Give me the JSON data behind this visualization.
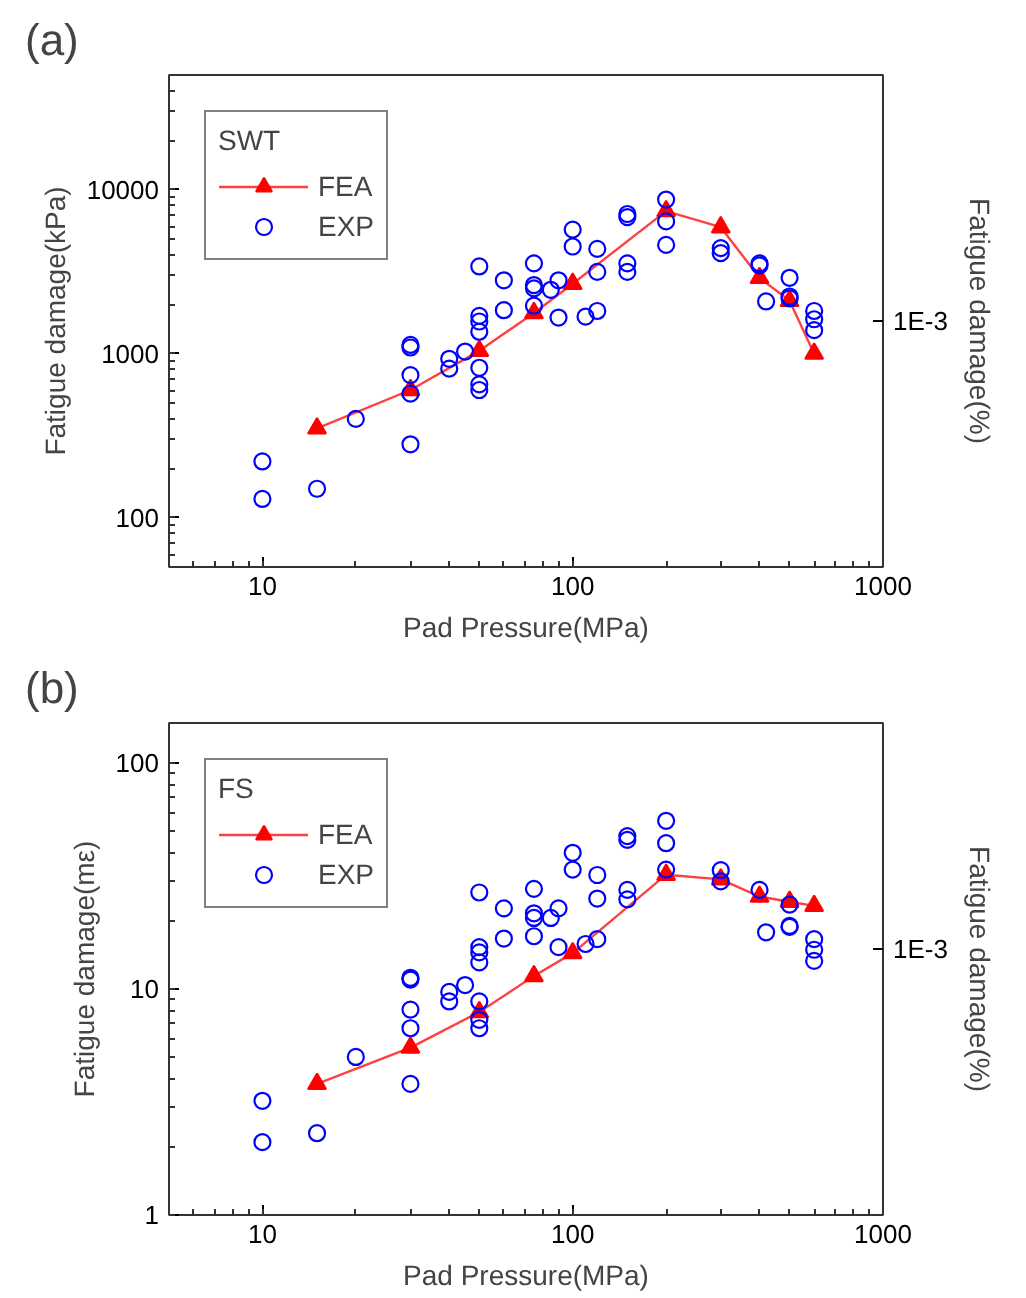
{
  "chart_data": [
    {
      "type": "scatter",
      "title": "(a)",
      "xlabel": "Pad Pressure(MPa)",
      "ylabel": "Fatigue damage(kPa)",
      "y2label": "Fatigue damage(%)",
      "legend_title": "SWT",
      "legend": "top left",
      "grid": false,
      "log": "xy",
      "xlim": [
        5,
        1000
      ],
      "ylim": [
        50,
        50000
      ],
      "xticks": [
        10,
        100,
        1000
      ],
      "yticks": [
        100,
        1000,
        10000
      ],
      "annotations": [
        "1E-3"
      ],
      "series": [
        {
          "name": "FEA",
          "type": "line",
          "marker": "triangle",
          "line_style": "solid",
          "color": "#ff0000",
          "x": [
            15,
            30,
            50,
            75,
            100,
            200,
            300,
            400,
            500,
            600
          ],
          "values": [
            350,
            600,
            1040,
            1770,
            2670,
            7400,
            5900,
            2900,
            2100,
            1000
          ]
        },
        {
          "name": "EXP",
          "marker": "circle",
          "color": "#0000ff",
          "x": [
            10,
            10,
            15,
            20,
            30,
            30,
            30,
            30,
            30,
            40,
            40,
            45,
            50,
            50,
            50,
            50,
            50,
            50,
            50,
            60,
            60,
            75,
            75,
            75,
            75,
            85,
            90,
            90,
            100,
            100,
            110,
            120,
            120,
            120,
            150,
            150,
            150,
            150,
            200,
            200,
            200,
            300,
            300,
            400,
            400,
            420,
            500,
            500,
            500,
            600,
            600,
            600
          ],
          "values": [
            220,
            130,
            150,
            400,
            1130,
            1090,
            740,
            570,
            280,
            930,
            810,
            1030,
            3400,
            1700,
            1570,
            1360,
            820,
            650,
            600,
            2800,
            1840,
            3550,
            2620,
            2500,
            1960,
            2450,
            2800,
            1660,
            5700,
            4500,
            1680,
            4350,
            3150,
            1820,
            7100,
            6800,
            3550,
            3150,
            8700,
            6400,
            4600,
            4400,
            4100,
            3550,
            3450,
            2080,
            2900,
            2230,
            2170,
            1820,
            1620,
            1390
          ]
        }
      ]
    },
    {
      "type": "scatter",
      "title": "(b)",
      "xlabel": "Pad Pressure(MPa)",
      "ylabel": "Fatigue damage(mε)",
      "y2label": "Fatigue damage(%)",
      "legend_title": "FS",
      "legend": "top left",
      "grid": false,
      "log": "xy",
      "xlim": [
        5,
        1000
      ],
      "ylim": [
        1,
        150
      ],
      "xticks": [
        10,
        100,
        1000
      ],
      "yticks": [
        1,
        10,
        100
      ],
      "annotations": [
        "1E-3"
      ],
      "series": [
        {
          "name": "FEA",
          "type": "line",
          "marker": "triangle",
          "line_style": "solid",
          "color": "#ff0000",
          "x": [
            15,
            30,
            50,
            75,
            100,
            200,
            300,
            400,
            500,
            600
          ],
          "values": [
            3.8,
            5.5,
            7.9,
            11.4,
            14.4,
            32,
            30.5,
            25.6,
            24.3,
            23.3
          ]
        },
        {
          "name": "EXP",
          "marker": "circle",
          "color": "#0000ff",
          "x": [
            10,
            10,
            15,
            20,
            30,
            30,
            30,
            30,
            30,
            40,
            40,
            45,
            50,
            50,
            50,
            50,
            50,
            50,
            50,
            60,
            60,
            75,
            75,
            75,
            75,
            85,
            90,
            90,
            100,
            100,
            110,
            120,
            120,
            120,
            150,
            150,
            150,
            150,
            200,
            200,
            200,
            300,
            300,
            400,
            420,
            500,
            500,
            500,
            600,
            600,
            600
          ],
          "values": [
            3.2,
            2.1,
            2.3,
            5.0,
            11.2,
            11.0,
            8.1,
            6.7,
            3.8,
            9.7,
            8.8,
            10.4,
            26.7,
            15.3,
            14.5,
            13.1,
            8.8,
            7.3,
            6.7,
            22.7,
            16.7,
            27.7,
            21.6,
            20.6,
            17.1,
            20.6,
            22.7,
            15.3,
            40,
            33.7,
            15.8,
            31.9,
            25.1,
            16.6,
            47.4,
            45.6,
            27.4,
            24.9,
            55.4,
            44.1,
            33.7,
            33.5,
            29.9,
            27.4,
            17.8,
            23.6,
            19.0,
            18.8,
            16.6,
            14.9,
            13.3
          ]
        }
      ]
    }
  ]
}
